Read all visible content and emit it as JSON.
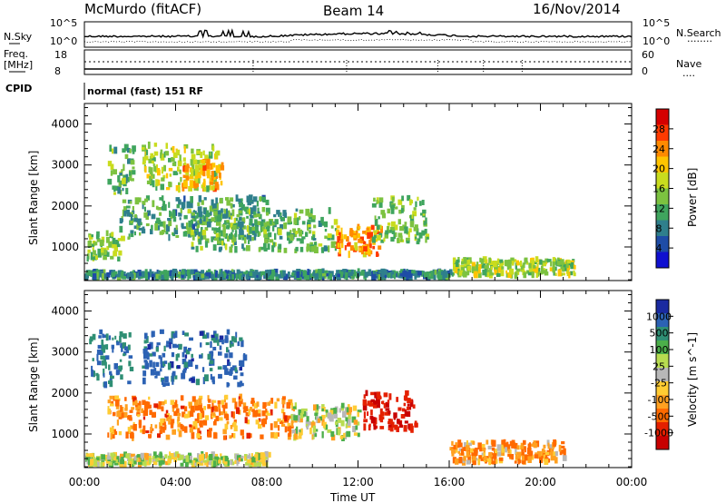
{
  "header": {
    "station": "McMurdo (fitACF)",
    "beam": "Beam 14",
    "date": "16/Nov/2014"
  },
  "status_panels": {
    "noise": {
      "left_label": "N.Sky",
      "right_label": "N.Search",
      "right_style": "........",
      "left_ticks": [
        "10^5",
        "10^0"
      ],
      "right_ticks": [
        "10^5",
        "10^0"
      ]
    },
    "freq": {
      "left_label_line1": "Freq.",
      "left_label_line2": "[MHz]",
      "right_label": "Nave",
      "right_style": "....",
      "left_ticks": [
        "18",
        "8"
      ],
      "right_ticks": [
        "60",
        "0"
      ]
    },
    "cpid": {
      "label": "CPID",
      "text": "normal (fast) 151 RF"
    }
  },
  "time_axis": {
    "label": "Time UT",
    "ticks": [
      "00:00",
      "04:00",
      "08:00",
      "12:00",
      "16:00",
      "20:00",
      "00:00"
    ]
  },
  "range_axis": {
    "label": "Slant Range [km]",
    "ticks": [
      "1000",
      "2000",
      "3000",
      "4000"
    ],
    "range": [
      180,
      4500
    ]
  },
  "chart_data": [
    {
      "type": "heatmap",
      "name": "power",
      "xlabel": "Time UT",
      "ylabel": "Slant Range [km]",
      "xlim": [
        0,
        24
      ],
      "ylim": [
        180,
        4500
      ],
      "colorbar_label": "Power [dB]",
      "colorbar_ticks": [
        "28",
        "24",
        "20",
        "16",
        "12",
        "8",
        "4"
      ],
      "colors": [
        "#d50000",
        "#ff3a00",
        "#ff8a00",
        "#ffc400",
        "#c9dc1e",
        "#7cc240",
        "#3fa55e",
        "#2f7f8c",
        "#1e4ca6",
        "#1010d0"
      ],
      "echo_regions": [
        {
          "t0": 0.1,
          "t1": 1.6,
          "r0": 700,
          "r1": 1350,
          "value": 14
        },
        {
          "t0": 1.0,
          "t1": 2.2,
          "r0": 2300,
          "r1": 3500,
          "value": 12
        },
        {
          "t0": 2.5,
          "t1": 5.8,
          "r0": 2400,
          "r1": 3500,
          "value": 16
        },
        {
          "t0": 4.2,
          "t1": 6.0,
          "r0": 2400,
          "r1": 3100,
          "value": 22
        },
        {
          "t0": 1.5,
          "t1": 8.0,
          "r0": 1200,
          "r1": 2200,
          "value": 10
        },
        {
          "t0": 4.5,
          "t1": 11.0,
          "r0": 900,
          "r1": 1900,
          "value": 12
        },
        {
          "t0": 11.0,
          "t1": 13.0,
          "r0": 800,
          "r1": 1500,
          "value": 24
        },
        {
          "t0": 12.6,
          "t1": 15.0,
          "r0": 1100,
          "r1": 2200,
          "value": 14
        },
        {
          "t0": 16.0,
          "t1": 21.5,
          "r0": 300,
          "r1": 700,
          "value": 16
        },
        {
          "t0": 0.0,
          "t1": 16.0,
          "r0": 250,
          "r1": 400,
          "value": 8
        }
      ]
    },
    {
      "type": "heatmap",
      "name": "velocity",
      "xlabel": "Time UT",
      "ylabel": "Slant Range [km]",
      "xlim": [
        0,
        24
      ],
      "ylim": [
        180,
        4500
      ],
      "colorbar_label": "Velocity [m s^-1]",
      "colorbar_ticks": [
        "1000",
        "500",
        "100",
        "25",
        "-25",
        "-100",
        "-500",
        "-1000"
      ],
      "colors": [
        "#1a2aa0",
        "#2c62b4",
        "#2f8f74",
        "#4caf4a",
        "#b8dc50",
        "#b8b8b8",
        "#ffcc33",
        "#ffa020",
        "#ff6a00",
        "#e42000",
        "#c80000"
      ],
      "echo_regions": [
        {
          "t0": 0.2,
          "t1": 2.0,
          "r0": 2200,
          "r1": 3500,
          "value": 600
        },
        {
          "t0": 2.5,
          "t1": 7.0,
          "r0": 2200,
          "r1": 3500,
          "value": 700
        },
        {
          "t0": 1.0,
          "t1": 9.0,
          "r0": 900,
          "r1": 1900,
          "value": -200
        },
        {
          "t0": 9.0,
          "t1": 12.0,
          "r0": 900,
          "r1": 1700,
          "value": 80
        },
        {
          "t0": 12.2,
          "t1": 14.5,
          "r0": 1100,
          "r1": 2000,
          "value": -700
        },
        {
          "t0": 16.0,
          "t1": 21.0,
          "r0": 300,
          "r1": 800,
          "value": -150
        },
        {
          "t0": 0.0,
          "t1": 8.0,
          "r0": 250,
          "r1": 500,
          "value": 100
        }
      ]
    }
  ]
}
